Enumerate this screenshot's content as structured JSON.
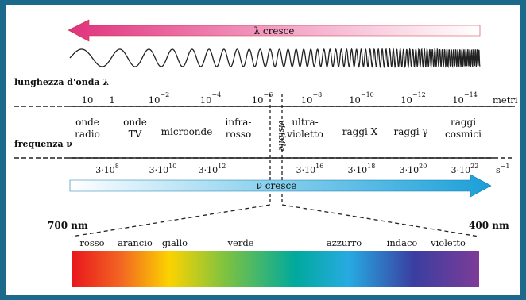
{
  "arrows": {
    "lambda_label": "λ cresce",
    "nu_label": "ν cresce"
  },
  "wavelength_axis": {
    "label": "lunghezza d'onda λ",
    "unit": "metri",
    "ticks": [
      {
        "base": "10",
        "exp": ""
      },
      {
        "base": "1",
        "exp": ""
      },
      {
        "base": "10",
        "exp": "−2"
      },
      {
        "base": "10",
        "exp": "−4"
      },
      {
        "base": "10",
        "exp": "−6"
      },
      {
        "base": "10",
        "exp": "−8"
      },
      {
        "base": "10",
        "exp": "−10"
      },
      {
        "base": "10",
        "exp": "−12"
      },
      {
        "base": "10",
        "exp": "−14"
      }
    ]
  },
  "frequency_axis": {
    "label": "frequenza ν",
    "unit": "s",
    "unit_exp": "−1",
    "ticks": [
      {
        "base": "3·10",
        "exp": "8"
      },
      {
        "base": "3·10",
        "exp": "10"
      },
      {
        "base": "3·10",
        "exp": "12"
      },
      {
        "base": "3·10",
        "exp": "16"
      },
      {
        "base": "3·10",
        "exp": "18"
      },
      {
        "base": "3·10",
        "exp": "20"
      },
      {
        "base": "3·10",
        "exp": "22"
      }
    ]
  },
  "regions": [
    {
      "line1": "onde",
      "line2": "radio"
    },
    {
      "line1": "onde",
      "line2": "TV"
    },
    {
      "line1": "microonde",
      "line2": ""
    },
    {
      "line1": "infra-",
      "line2": "rosso"
    },
    {
      "line1": "ultra-",
      "line2": "violetto"
    },
    {
      "line1": "raggi X",
      "line2": ""
    },
    {
      "line1": "raggi γ",
      "line2": ""
    },
    {
      "line1": "raggi",
      "line2": "cosmici"
    }
  ],
  "visible_label": "visibile",
  "spectrum": {
    "left_nm": "700 nm",
    "right_nm": "400 nm",
    "colors": [
      "rosso",
      "arancio",
      "giallo",
      "verde",
      "azzurro",
      "indaco",
      "violetto"
    ]
  }
}
